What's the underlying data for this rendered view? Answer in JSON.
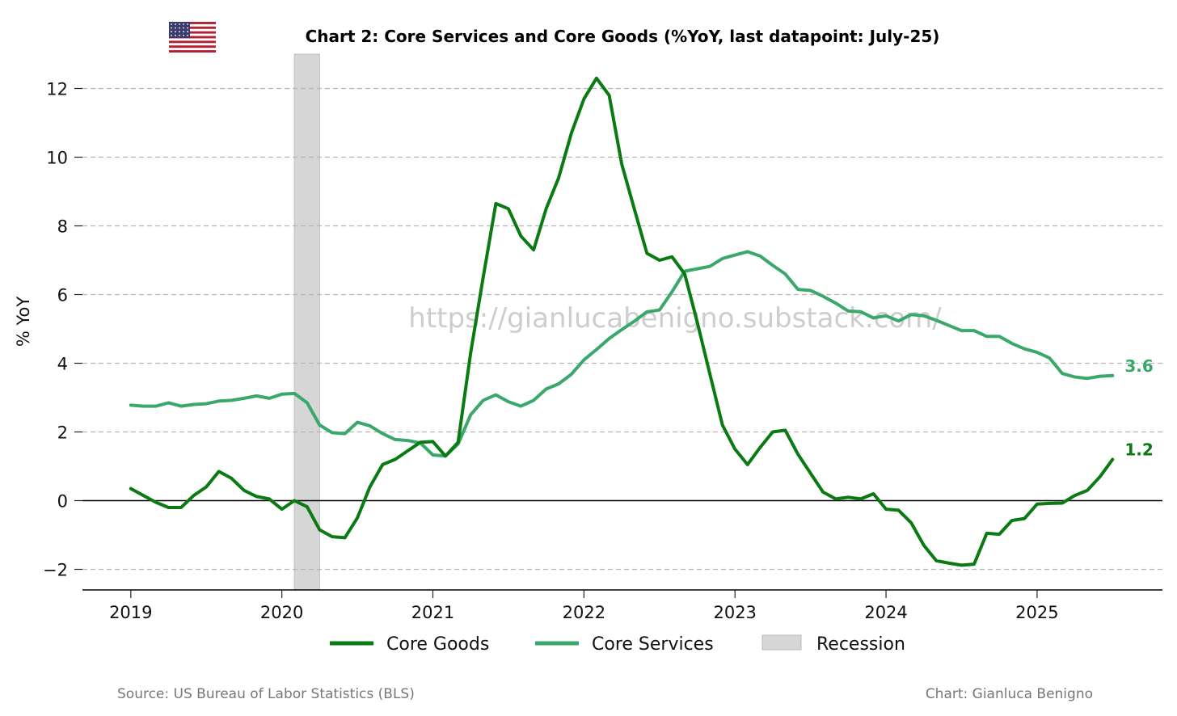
{
  "colors": {
    "core_goods": "#0a7a12",
    "core_services": "#3aa86b",
    "recession": "#d6d6d6",
    "grid": "#b5b5b5"
  },
  "flag_icon": "us-flag-icon",
  "watermark": "https://gianlucabenigno.substack.com/",
  "footer": {
    "source": "Source: US Bureau of Labor Statistics (BLS)",
    "credit": "Chart: Gianluca Benigno"
  },
  "chart_data": {
    "type": "line",
    "title": "Chart 2: Core Services and Core Goods (%YoY, last datapoint: July-25)",
    "xlabel": "",
    "ylabel": "% YoY",
    "xlim": [
      2018.68,
      2025.83
    ],
    "ylim": [
      -2.6,
      13.0
    ],
    "yticks": [
      -2,
      0,
      2,
      4,
      6,
      8,
      10,
      12
    ],
    "ytick_labels": [
      "−2",
      "0",
      "2",
      "4",
      "6",
      "8",
      "10",
      "12"
    ],
    "xticks": [
      2019,
      2020,
      2021,
      2022,
      2023,
      2024,
      2025
    ],
    "xtick_labels": [
      "2019",
      "2020",
      "2021",
      "2022",
      "2023",
      "2024",
      "2025"
    ],
    "grid": true,
    "legend_position": "bottom-center",
    "recession": {
      "start": 2020.083,
      "end": 2020.25,
      "label": "Recession"
    },
    "series": [
      {
        "name": "Core Goods",
        "end_label": "1.2",
        "x": [
          2019.0,
          2019.083,
          2019.167,
          2019.25,
          2019.333,
          2019.417,
          2019.5,
          2019.583,
          2019.667,
          2019.75,
          2019.833,
          2019.917,
          2020.0,
          2020.083,
          2020.167,
          2020.25,
          2020.333,
          2020.417,
          2020.5,
          2020.583,
          2020.667,
          2020.75,
          2020.833,
          2020.917,
          2021.0,
          2021.083,
          2021.167,
          2021.25,
          2021.333,
          2021.417,
          2021.5,
          2021.583,
          2021.667,
          2021.75,
          2021.833,
          2021.917,
          2022.0,
          2022.083,
          2022.167,
          2022.25,
          2022.333,
          2022.417,
          2022.5,
          2022.583,
          2022.667,
          2022.75,
          2022.833,
          2022.917,
          2023.0,
          2023.083,
          2023.167,
          2023.25,
          2023.333,
          2023.417,
          2023.5,
          2023.583,
          2023.667,
          2023.75,
          2023.833,
          2023.917,
          2024.0,
          2024.083,
          2024.167,
          2024.25,
          2024.333,
          2024.417,
          2024.5,
          2024.583,
          2024.667,
          2024.75,
          2024.833,
          2024.917,
          2025.0,
          2025.083,
          2025.167,
          2025.25,
          2025.333,
          2025.417,
          2025.5
        ],
        "values": [
          0.35,
          0.15,
          -0.05,
          -0.2,
          -0.2,
          0.15,
          0.4,
          0.85,
          0.65,
          0.3,
          0.12,
          0.05,
          -0.25,
          0.0,
          -0.18,
          -0.85,
          -1.05,
          -1.08,
          -0.5,
          0.4,
          1.05,
          1.2,
          1.45,
          1.7,
          1.72,
          1.3,
          1.7,
          4.3,
          6.5,
          8.65,
          8.5,
          7.7,
          7.3,
          8.5,
          9.4,
          10.7,
          11.7,
          12.3,
          11.8,
          9.8,
          8.5,
          7.2,
          7.0,
          7.1,
          6.6,
          5.2,
          3.7,
          2.2,
          1.5,
          1.05,
          1.55,
          2.0,
          2.05,
          1.35,
          0.8,
          0.25,
          0.05,
          0.1,
          0.05,
          0.2,
          -0.25,
          -0.28,
          -0.65,
          -1.3,
          -1.75,
          -1.82,
          -1.88,
          -1.85,
          -0.95,
          -0.98,
          -0.58,
          -0.52,
          -0.1,
          -0.08,
          -0.07,
          0.15,
          0.3,
          0.7,
          1.2
        ]
      },
      {
        "name": "Core Services",
        "end_label": "3.6",
        "x": [
          2019.0,
          2019.083,
          2019.167,
          2019.25,
          2019.333,
          2019.417,
          2019.5,
          2019.583,
          2019.667,
          2019.75,
          2019.833,
          2019.917,
          2020.0,
          2020.083,
          2020.167,
          2020.25,
          2020.333,
          2020.417,
          2020.5,
          2020.583,
          2020.667,
          2020.75,
          2020.833,
          2020.917,
          2021.0,
          2021.083,
          2021.167,
          2021.25,
          2021.333,
          2021.417,
          2021.5,
          2021.583,
          2021.667,
          2021.75,
          2021.833,
          2021.917,
          2022.0,
          2022.083,
          2022.167,
          2022.25,
          2022.333,
          2022.417,
          2022.5,
          2022.583,
          2022.667,
          2022.75,
          2022.833,
          2022.917,
          2023.0,
          2023.083,
          2023.167,
          2023.25,
          2023.333,
          2023.417,
          2023.5,
          2023.583,
          2023.667,
          2023.75,
          2023.833,
          2023.917,
          2024.0,
          2024.083,
          2024.167,
          2024.25,
          2024.333,
          2024.417,
          2024.5,
          2024.583,
          2024.667,
          2024.75,
          2024.833,
          2024.917,
          2025.0,
          2025.083,
          2025.167,
          2025.25,
          2025.333,
          2025.417,
          2025.5
        ],
        "values": [
          2.78,
          2.75,
          2.75,
          2.85,
          2.75,
          2.8,
          2.82,
          2.9,
          2.92,
          2.98,
          3.05,
          2.98,
          3.1,
          3.12,
          2.85,
          2.2,
          1.98,
          1.95,
          2.28,
          2.18,
          1.95,
          1.78,
          1.75,
          1.68,
          1.33,
          1.3,
          1.65,
          2.5,
          2.92,
          3.08,
          2.88,
          2.75,
          2.92,
          3.25,
          3.4,
          3.68,
          4.1,
          4.4,
          4.72,
          4.98,
          5.22,
          5.5,
          5.55,
          6.08,
          6.68,
          6.75,
          6.82,
          7.05,
          7.15,
          7.25,
          7.12,
          6.85,
          6.6,
          6.15,
          6.12,
          5.95,
          5.75,
          5.52,
          5.5,
          5.32,
          5.38,
          5.23,
          5.42,
          5.38,
          5.25,
          5.1,
          4.95,
          4.95,
          4.78,
          4.78,
          4.58,
          4.42,
          4.32,
          4.15,
          3.7,
          3.6,
          3.56,
          3.62,
          3.64
        ]
      }
    ]
  }
}
